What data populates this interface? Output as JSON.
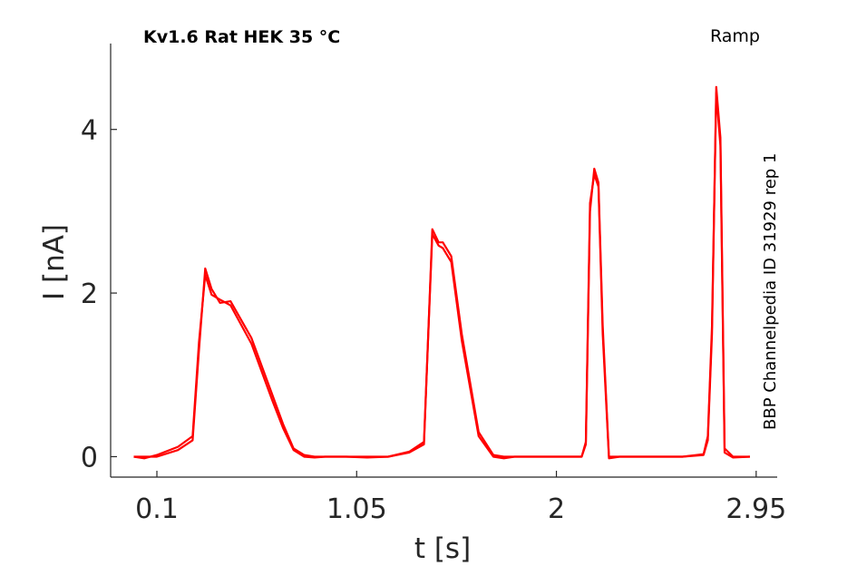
{
  "chart_data": {
    "type": "line",
    "title": "Kv1.6  Rat  HEK  35 °C",
    "protocol": "Ramp",
    "source": "BBP Channelpedia ID 31929 rep 1",
    "xlabel": "t [s]",
    "ylabel": "I [nA]",
    "xlim": [
      -0.12,
      3.05
    ],
    "ylim": [
      -0.25,
      5.05
    ],
    "xticks": [
      0.1,
      1.05,
      2,
      2.95
    ],
    "xtick_labels": [
      "0.1",
      "1.05",
      "2",
      "2.95"
    ],
    "yticks": [
      0,
      2,
      4
    ],
    "ytick_labels": [
      "0",
      "2",
      "4"
    ],
    "grid": false,
    "color": "#ff0000",
    "series": [
      {
        "x": [
          -0.01,
          0.04,
          0.1,
          0.2,
          0.27,
          0.3,
          0.33,
          0.36,
          0.4,
          0.45,
          0.55,
          0.65,
          0.7,
          0.75,
          0.8,
          0.85,
          0.9,
          1.0,
          1.1,
          1.2,
          1.3,
          1.37,
          1.41,
          1.44,
          1.46,
          1.5,
          1.55,
          1.63,
          1.7,
          1.75,
          1.8,
          2.0,
          2.12,
          2.14,
          2.16,
          2.18,
          2.2,
          2.22,
          2.25,
          2.3,
          2.4,
          2.6,
          2.7,
          2.72,
          2.74,
          2.76,
          2.78,
          2.8,
          2.84,
          2.92
        ],
        "y": [
          0.0,
          0.0,
          0.0,
          0.08,
          0.2,
          1.3,
          2.3,
          2.05,
          1.88,
          1.9,
          1.45,
          0.75,
          0.4,
          0.1,
          0.02,
          0.0,
          0.0,
          0.0,
          0.0,
          0.0,
          0.05,
          0.15,
          2.78,
          2.62,
          2.62,
          2.45,
          1.5,
          0.3,
          0.02,
          0.0,
          0.0,
          0.0,
          0.0,
          0.15,
          3.0,
          3.52,
          3.35,
          1.6,
          0.0,
          0.0,
          0.0,
          0.0,
          0.02,
          0.2,
          1.5,
          4.52,
          3.9,
          0.1,
          0.0,
          0.0
        ]
      },
      {
        "x": [
          -0.01,
          0.04,
          0.1,
          0.2,
          0.27,
          0.3,
          0.33,
          0.36,
          0.4,
          0.45,
          0.55,
          0.65,
          0.7,
          0.75,
          0.8,
          0.85,
          0.9,
          1.0,
          1.1,
          1.2,
          1.3,
          1.37,
          1.41,
          1.44,
          1.46,
          1.5,
          1.55,
          1.63,
          1.7,
          1.75,
          1.8,
          2.0,
          2.12,
          2.14,
          2.16,
          2.18,
          2.2,
          2.22,
          2.25,
          2.3,
          2.4,
          2.6,
          2.7,
          2.72,
          2.74,
          2.76,
          2.78,
          2.8,
          2.84,
          2.92
        ],
        "y": [
          0.0,
          -0.02,
          0.02,
          0.12,
          0.25,
          1.4,
          2.22,
          1.98,
          1.92,
          1.85,
          1.38,
          0.68,
          0.35,
          0.08,
          0.0,
          -0.01,
          0.0,
          0.0,
          -0.01,
          0.0,
          0.06,
          0.18,
          2.72,
          2.58,
          2.55,
          2.38,
          1.42,
          0.25,
          0.0,
          -0.02,
          0.0,
          0.0,
          0.0,
          0.18,
          3.1,
          3.45,
          3.3,
          1.5,
          -0.02,
          0.0,
          0.0,
          0.0,
          0.03,
          0.25,
          1.6,
          4.45,
          3.8,
          0.05,
          -0.01,
          0.0
        ]
      }
    ]
  }
}
